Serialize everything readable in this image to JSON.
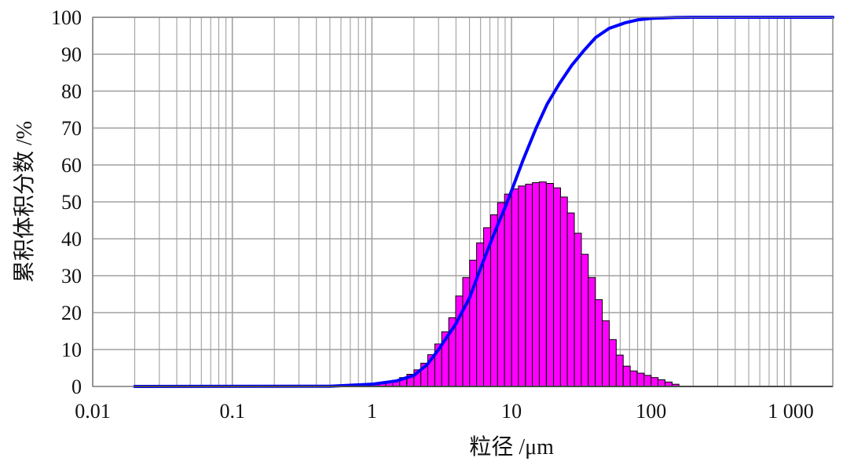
{
  "chart_data": {
    "type": "bar",
    "xlabel": "粒径 /μm",
    "ylabel": "累积体积分数 /%",
    "x_scale": "log",
    "xlim": [
      0.01,
      2000
    ],
    "ylim": [
      0,
      100
    ],
    "grid": true,
    "x_tick_labels": [
      "0.01",
      "0.1",
      "1",
      "10",
      "100",
      "1 000"
    ],
    "x_tick_values": [
      0.01,
      0.1,
      1,
      10,
      100,
      1000
    ],
    "y_tick_labels": [
      "0",
      "10",
      "20",
      "30",
      "40",
      "50",
      "60",
      "70",
      "80",
      "90",
      "100"
    ],
    "y_tick_values": [
      0,
      10,
      20,
      30,
      40,
      50,
      60,
      70,
      80,
      90,
      100
    ],
    "colors": {
      "bars": "#ff00ff",
      "bar_edge": "#000000",
      "curve": "#0000ff",
      "grid": "#a0a0a0"
    },
    "series": [
      {
        "type": "bar",
        "bins": [
          [
            1.0,
            0.5
          ],
          [
            1.12,
            0.8
          ],
          [
            1.26,
            1.2
          ],
          [
            1.41,
            1.7
          ],
          [
            1.58,
            2.4
          ],
          [
            1.78,
            3.3
          ],
          [
            2.0,
            4.5
          ],
          [
            2.24,
            6.3
          ],
          [
            2.51,
            8.6
          ],
          [
            2.82,
            11.5
          ],
          [
            3.16,
            14.8
          ],
          [
            3.55,
            18.6
          ],
          [
            3.98,
            24.5
          ],
          [
            4.47,
            29.5
          ],
          [
            5.01,
            34.2
          ],
          [
            5.62,
            38.9
          ],
          [
            6.31,
            43.0
          ],
          [
            7.08,
            46.5
          ],
          [
            7.94,
            49.8
          ],
          [
            8.91,
            52.1
          ],
          [
            10.0,
            53.5
          ],
          [
            11.2,
            54.3
          ],
          [
            12.6,
            54.8
          ],
          [
            14.1,
            55.2
          ],
          [
            15.8,
            55.4
          ],
          [
            17.8,
            55.0
          ],
          [
            20.0,
            53.8
          ],
          [
            22.4,
            51.3
          ],
          [
            25.1,
            47.0
          ],
          [
            28.2,
            41.5
          ],
          [
            31.6,
            35.8
          ],
          [
            35.5,
            29.5
          ],
          [
            39.8,
            23.5
          ],
          [
            44.7,
            17.8
          ],
          [
            50.1,
            12.7
          ],
          [
            56.2,
            8.5
          ],
          [
            63.1,
            5.5
          ],
          [
            70.8,
            4.2
          ],
          [
            79.4,
            3.6
          ],
          [
            89.1,
            3.0
          ],
          [
            100,
            2.4
          ],
          [
            112,
            1.8
          ],
          [
            126,
            1.2
          ],
          [
            141,
            0.6
          ]
        ]
      },
      {
        "type": "line",
        "points": [
          [
            0.02,
            0
          ],
          [
            0.5,
            0.05
          ],
          [
            1.0,
            0.6
          ],
          [
            1.5,
            1.5
          ],
          [
            2.0,
            3.0
          ],
          [
            2.5,
            6.0
          ],
          [
            3.0,
            10.0
          ],
          [
            4.0,
            17.0
          ],
          [
            5.0,
            24.0
          ],
          [
            6.0,
            32.0
          ],
          [
            7.0,
            38.5
          ],
          [
            8.0,
            44.0
          ],
          [
            9.0,
            48.5
          ],
          [
            10.0,
            53.0
          ],
          [
            12.0,
            61.0
          ],
          [
            15.0,
            70.0
          ],
          [
            18.0,
            76.5
          ],
          [
            22.0,
            82.0
          ],
          [
            27.0,
            87.0
          ],
          [
            33.0,
            91.0
          ],
          [
            40.0,
            94.5
          ],
          [
            50.0,
            97.0
          ],
          [
            65.0,
            98.5
          ],
          [
            80.0,
            99.3
          ],
          [
            100,
            99.7
          ],
          [
            150,
            99.95
          ],
          [
            200,
            100
          ],
          [
            2000,
            100
          ]
        ]
      }
    ]
  }
}
